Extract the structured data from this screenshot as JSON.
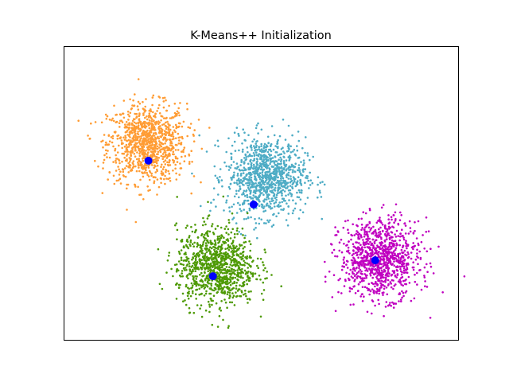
{
  "chart_data": {
    "type": "scatter",
    "title": "K-Means++ Initialization",
    "xlabel": "",
    "ylabel": "",
    "xlim": [
      -3,
      3
    ],
    "ylim": [
      -2,
      10
    ],
    "ticks_visible": false,
    "grid": false,
    "points_per_cluster": 1000,
    "clusters": [
      {
        "color": "#FF9C34",
        "center": [
          -1.73,
          6.03
        ],
        "std": [
          0.3,
          0.8
        ]
      },
      {
        "color": "#4EACC5",
        "center": [
          0.08,
          4.67
        ],
        "std": [
          0.3,
          0.8
        ]
      },
      {
        "color": "#4E9A06",
        "center": [
          -0.68,
          0.99
        ],
        "std": [
          0.3,
          0.8
        ]
      },
      {
        "color": "#C000C0",
        "center": [
          1.81,
          1.32
        ],
        "std": [
          0.3,
          0.8
        ]
      }
    ],
    "seeds": {
      "color": "#0000FF",
      "points": [
        [
          -1.71,
          5.32
        ],
        [
          -0.11,
          3.53
        ],
        [
          -0.73,
          0.6
        ],
        [
          1.74,
          1.25
        ]
      ]
    }
  }
}
